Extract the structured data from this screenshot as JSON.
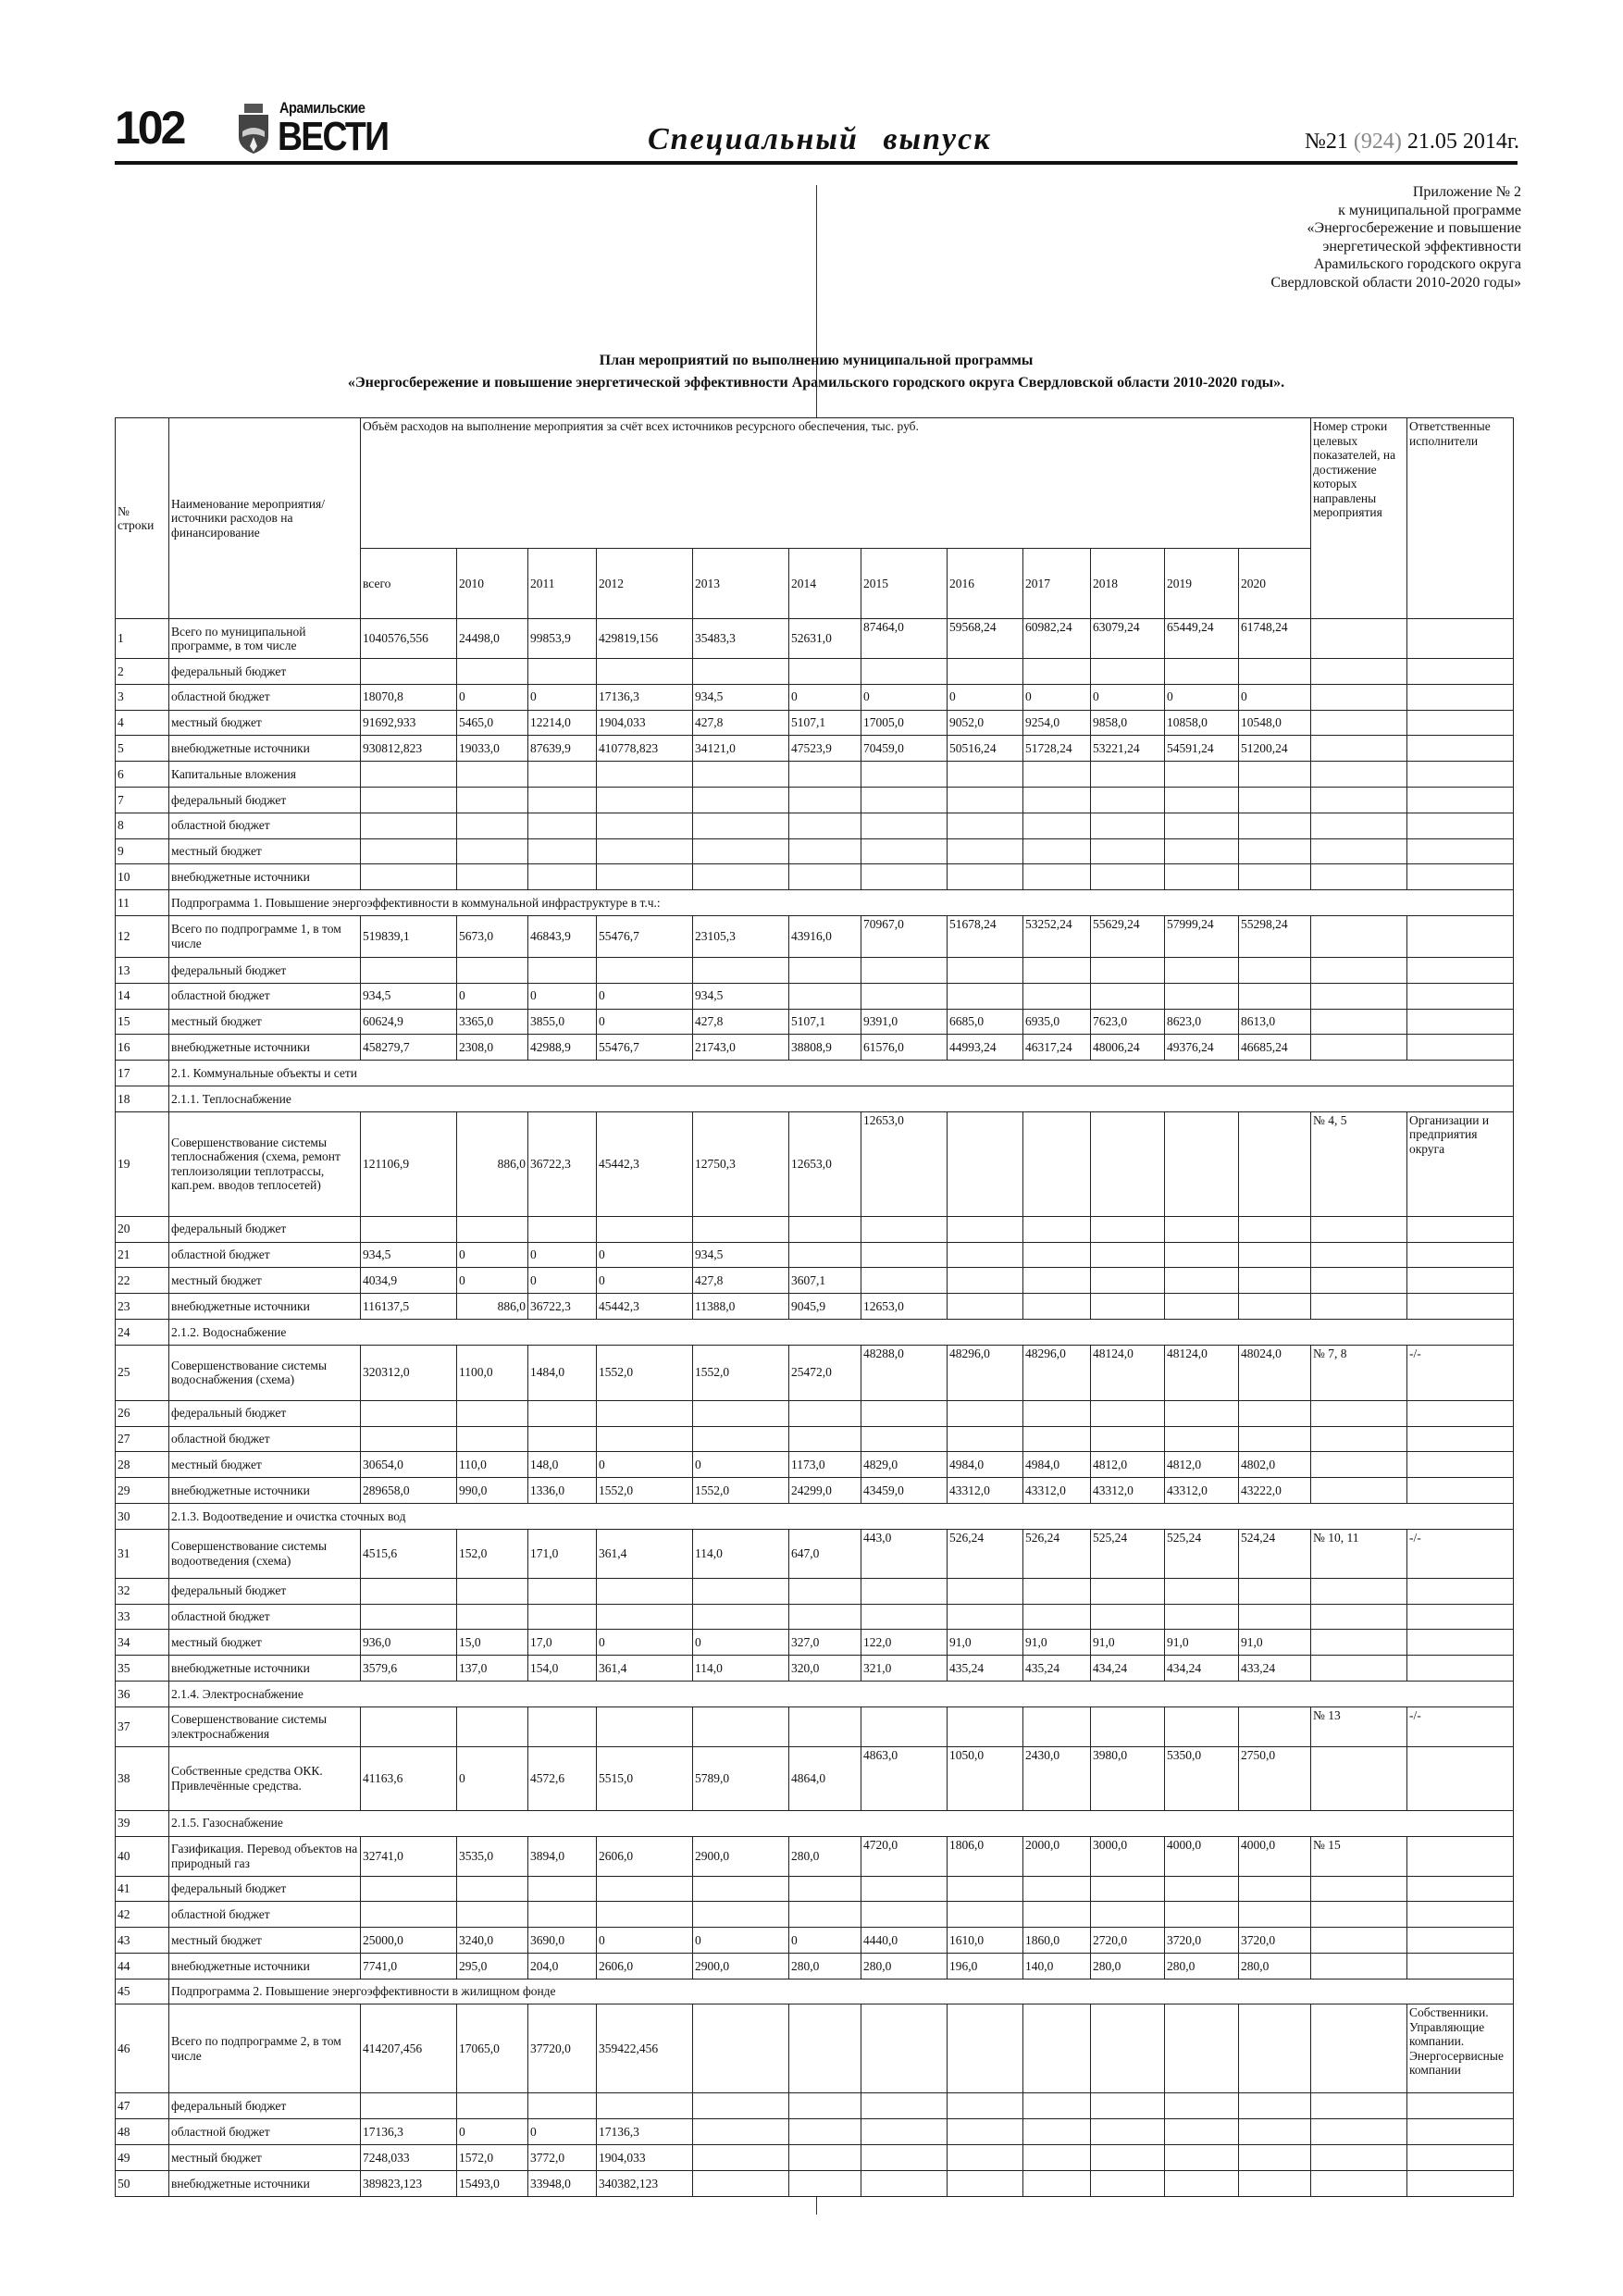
{
  "header": {
    "page_number": "102",
    "logo_top": "Арамильские",
    "logo_main": "ВЕСТИ",
    "issue_title": "Специальный выпуск",
    "issue_no_prefix": "№21",
    "issue_no_gray": "(924)",
    "issue_date": "21.05 2014г."
  },
  "appendix": [
    "Приложение № 2",
    "к муниципальной программе",
    "«Энергосбережение и повышение",
    "энергетической эффективности",
    "Арамильского городского округа",
    "Свердловской области 2010-2020 годы»"
  ],
  "title": [
    "План мероприятий по выполнению муниципальной программы",
    "«Энергосбережение и повышение энергетической эффективности Арамильского городского округа Свердловской области 2010-2020 годы»."
  ],
  "table": {
    "headers": {
      "row_no": "№ строки",
      "name": "Наименование мероприятия/ источники расходов на финансирование",
      "volume": "Объём расходов на выполнение мероприятия за счёт всех источников ресурсного обеспечения, тыс. руб.",
      "target": "Номер строки целевых показателей, на достижение которых направлены мероприятия",
      "resp": "Ответственные исполнители",
      "years": [
        "всего",
        "2010",
        "2011",
        "2012",
        "2013",
        "2014",
        "2015",
        "2016",
        "2017",
        "2018",
        "2019",
        "2020"
      ]
    },
    "rows": [
      {
        "n": "1",
        "name": "Всего по муниципальной программе, в том числе",
        "vals": [
          "1040576,556",
          "24498,0",
          "99853,9",
          "429819,156",
          "35483,3",
          "52631,0",
          "87464,0",
          "59568,24",
          "60982,24",
          "63079,24",
          "65449,24",
          "61748,24"
        ]
      },
      {
        "n": "2",
        "name": "федеральный бюджет",
        "vals": []
      },
      {
        "n": "3",
        "name": "областной бюджет",
        "vals": [
          "18070,8",
          "0",
          "0",
          "17136,3",
          "934,5",
          "0",
          "0",
          "0",
          "0",
          "0",
          "0",
          "0"
        ]
      },
      {
        "n": "4",
        "name": "местный бюджет",
        "vals": [
          "91692,933",
          "5465,0",
          "12214,0",
          "1904,033",
          "427,8",
          "5107,1",
          "17005,0",
          "9052,0",
          "9254,0",
          "9858,0",
          "10858,0",
          "10548,0"
        ]
      },
      {
        "n": "5",
        "name": "внебюджетные источники",
        "vals": [
          "930812,823",
          "19033,0",
          "87639,9",
          "410778,823",
          "34121,0",
          "47523,9",
          "70459,0",
          "50516,24",
          "51728,24",
          "53221,24",
          "54591,24",
          "51200,24"
        ]
      },
      {
        "n": "6",
        "name": "Капитальные вложения",
        "vals": []
      },
      {
        "n": "7",
        "name": "федеральный бюджет",
        "vals": []
      },
      {
        "n": "8",
        "name": "областной бюджет",
        "vals": []
      },
      {
        "n": "9",
        "name": "местный бюджет",
        "vals": []
      },
      {
        "n": "10",
        "name": "внебюджетные источники",
        "vals": []
      },
      {
        "n": "11",
        "section": "Подпрограмма 1. Повышение энергоэффективности в коммунальной инфраструктуре в т.ч.:"
      },
      {
        "n": "12",
        "name": "Всего по подпрограмме 1, в том числе",
        "vals": [
          "519839,1",
          "5673,0",
          "46843,9",
          "55476,7",
          "23105,3",
          "43916,0",
          "70967,0",
          "51678,24",
          "53252,24",
          "55629,24",
          "57999,24",
          "55298,24"
        ]
      },
      {
        "n": "13",
        "name": "федеральный бюджет",
        "vals": []
      },
      {
        "n": "14",
        "name": "областной бюджет",
        "vals": [
          "934,5",
          "0",
          "0",
          "0",
          "934,5"
        ]
      },
      {
        "n": "15",
        "name": "местный бюджет",
        "vals": [
          "60624,9",
          "3365,0",
          "3855,0",
          "0",
          "427,8",
          "5107,1",
          "9391,0",
          "6685,0",
          "6935,0",
          "7623,0",
          "8623,0",
          "8613,0"
        ]
      },
      {
        "n": "16",
        "name": "внебюджетные источники",
        "vals": [
          "458279,7",
          "2308,0",
          "42988,9",
          "55476,7",
          "21743,0",
          "38808,9",
          "61576,0",
          "44993,24",
          "46317,24",
          "48006,24",
          "49376,24",
          "46685,24"
        ]
      },
      {
        "n": "17",
        "section": "2.1. Коммунальные объекты и сети"
      },
      {
        "n": "18",
        "section": "2.1.1. Теплоснабжение"
      },
      {
        "n": "19",
        "name": "Совершенствование системы теплоснабжения (схема, ремонт теплоизоляции теплотрассы, кап.рем. вводов теплосетей)",
        "vals": [
          "121106,9",
          "886,0",
          "36722,3",
          "45442,3",
          "12750,3",
          "12653,0",
          "12653,0"
        ],
        "target": "№ 4, 5",
        "resp": "Организации и предприятия округа"
      },
      {
        "n": "20",
        "name": "федеральный бюджет",
        "vals": []
      },
      {
        "n": "21",
        "name": "областной бюджет",
        "vals": [
          "934,5",
          "0",
          "0",
          "0",
          "934,5"
        ]
      },
      {
        "n": "22",
        "name": "местный бюджет",
        "vals": [
          "4034,9",
          "0",
          "0",
          "0",
          "427,8",
          "3607,1"
        ]
      },
      {
        "n": "23",
        "name": "внебюджетные источники",
        "vals": [
          "116137,5",
          "886,0",
          "36722,3",
          "45442,3",
          "11388,0",
          "9045,9",
          "12653,0"
        ]
      },
      {
        "n": "24",
        "section": "2.1.2. Водоснабжение"
      },
      {
        "n": "25",
        "name": "Совершенствование системы водоснабжения (схема)",
        "vals": [
          "320312,0",
          "1100,0",
          "1484,0",
          "1552,0",
          "1552,0",
          "25472,0",
          "48288,0",
          "48296,0",
          "48296,0",
          "48124,0",
          "48124,0",
          "48024,0"
        ],
        "target": "№ 7, 8",
        "resp": "-/-"
      },
      {
        "n": "26",
        "name": "федеральный бюджет",
        "vals": []
      },
      {
        "n": "27",
        "name": "областной бюджет",
        "vals": []
      },
      {
        "n": "28",
        "name": "местный бюджет",
        "vals": [
          "30654,0",
          "110,0",
          "148,0",
          "0",
          "0",
          "1173,0",
          "4829,0",
          "4984,0",
          "4984,0",
          "4812,0",
          "4812,0",
          "4802,0"
        ]
      },
      {
        "n": "29",
        "name": "внебюджетные источники",
        "vals": [
          "289658,0",
          "990,0",
          "1336,0",
          "1552,0",
          "1552,0",
          "24299,0",
          "43459,0",
          "43312,0",
          "43312,0",
          "43312,0",
          "43312,0",
          "43222,0"
        ]
      },
      {
        "n": "30",
        "section": "2.1.3. Водоотведение и очистка сточных вод"
      },
      {
        "n": "31",
        "name": "Совершенствование системы водоотведения (схема)",
        "vals": [
          "4515,6",
          "152,0",
          "171,0",
          "361,4",
          "114,0",
          "647,0",
          "443,0",
          "526,24",
          "526,24",
          "525,24",
          "525,24",
          "524,24"
        ],
        "target": "№ 10, 11",
        "resp": "-/-"
      },
      {
        "n": "32",
        "name": "федеральный бюджет",
        "vals": []
      },
      {
        "n": "33",
        "name": "областной бюджет",
        "vals": []
      },
      {
        "n": "34",
        "name": "местный бюджет",
        "vals": [
          "936,0",
          "15,0",
          "17,0",
          "0",
          "0",
          "327,0",
          "122,0",
          "91,0",
          "91,0",
          "91,0",
          "91,0",
          "91,0"
        ]
      },
      {
        "n": "35",
        "name": "внебюджетные источники",
        "vals": [
          "3579,6",
          "137,0",
          "154,0",
          "361,4",
          "114,0",
          "320,0",
          "321,0",
          "435,24",
          "435,24",
          "434,24",
          "434,24",
          "433,24"
        ]
      },
      {
        "n": "36",
        "section": "2.1.4. Электроснабжение"
      },
      {
        "n": "37",
        "name": "Совершенствование системы электроснабжения",
        "vals": [],
        "target": "№ 13",
        "resp": "-/-"
      },
      {
        "n": "38",
        "name": "Собственные средства ОКК. Привлечённые средства.",
        "vals": [
          "41163,6",
          "0",
          "4572,6",
          "5515,0",
          "5789,0",
          "4864,0",
          "4863,0",
          "1050,0",
          "2430,0",
          "3980,0",
          "5350,0",
          "2750,0"
        ]
      },
      {
        "n": "39",
        "section": "2.1.5. Газоснабжение"
      },
      {
        "n": "40",
        "name": "Газификация. Перевод объектов на природный газ",
        "vals": [
          "32741,0",
          "3535,0",
          "3894,0",
          "2606,0",
          "2900,0",
          "280,0",
          "4720,0",
          "1806,0",
          "2000,0",
          "3000,0",
          "4000,0",
          "4000,0"
        ],
        "target": "№ 15"
      },
      {
        "n": "41",
        "name": "федеральный бюджет",
        "vals": []
      },
      {
        "n": "42",
        "name": "областной бюджет",
        "vals": []
      },
      {
        "n": "43",
        "name": "местный бюджет",
        "vals": [
          "25000,0",
          "3240,0",
          "3690,0",
          "0",
          "0",
          "0",
          "4440,0",
          "1610,0",
          "1860,0",
          "2720,0",
          "3720,0",
          "3720,0"
        ]
      },
      {
        "n": "44",
        "name": "внебюджетные источники",
        "vals": [
          "7741,0",
          "295,0",
          "204,0",
          "2606,0",
          "2900,0",
          "280,0",
          "280,0",
          "196,0",
          "140,0",
          "280,0",
          "280,0",
          "280,0"
        ]
      },
      {
        "n": "45",
        "section": " Подпрограмма 2. Повышение энергоэффективности в жилищном фонде"
      },
      {
        "n": "46",
        "name": "Всего по подпрограмме 2, в том числе",
        "vals": [
          "414207,456",
          "17065,0",
          "37720,0",
          "359422,456"
        ],
        "resp": "Собственники. Управляющие компании. Энергосервисные компании"
      },
      {
        "n": "47",
        "name": "федеральный бюджет",
        "vals": []
      },
      {
        "n": "48",
        "name": "областной бюджет",
        "vals": [
          "17136,3",
          "0",
          "0",
          "17136,3"
        ]
      },
      {
        "n": "49",
        "name": "местный бюджет",
        "vals": [
          "7248,033",
          "1572,0",
          "3772,0",
          "1904,033"
        ]
      },
      {
        "n": "50",
        "name": "внебюджетные источники",
        "vals": [
          "389823,123",
          "15493,0",
          "33948,0",
          "340382,123"
        ]
      }
    ]
  }
}
